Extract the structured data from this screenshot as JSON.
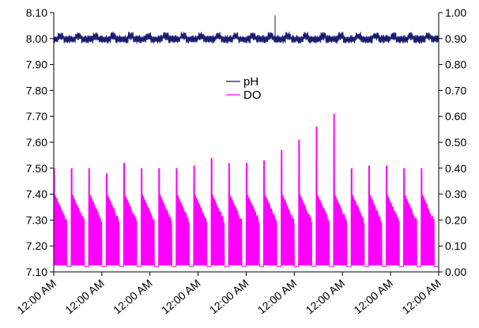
{
  "chart_data": {
    "type": "line",
    "title": "",
    "xlabel": "",
    "ylabel_left": "",
    "ylabel_right": "",
    "x_ticks": [
      "12:00 AM",
      "12:00 AM",
      "12:00 AM",
      "12:00 AM",
      "12:00 AM",
      "12:00 AM",
      "12:00 AM",
      "12:00 AM",
      "12:00 AM"
    ],
    "y_left": {
      "min": 7.1,
      "max": 8.1,
      "ticks": [
        "7.10",
        "7.20",
        "7.30",
        "7.40",
        "7.50",
        "7.60",
        "7.70",
        "7.80",
        "7.90",
        "8.00",
        "8.10"
      ]
    },
    "y_right": {
      "min": 0.0,
      "max": 1.0,
      "ticks": [
        "0.00",
        "0.10",
        "0.20",
        "0.30",
        "0.40",
        "0.50",
        "0.60",
        "0.70",
        "0.80",
        "0.90",
        "1.00"
      ]
    },
    "legend_position": "center",
    "grid": false,
    "days": 22,
    "series": [
      {
        "name": "pH",
        "axis": "left",
        "color": "#1a1a6e",
        "baseline": 7.985,
        "upper": 8.015,
        "spike": {
          "day_fraction": 0.575,
          "value": 8.09
        }
      },
      {
        "name": "DO",
        "axis": "right",
        "color": "#ff00ff",
        "daily_peaks": [
          0.4,
          0.4,
          0.4,
          0.38,
          0.42,
          0.4,
          0.4,
          0.4,
          0.41,
          0.44,
          0.42,
          0.42,
          0.43,
          0.47,
          0.51,
          0.56,
          0.61,
          0.4,
          0.41,
          0.41,
          0.4
        ],
        "plateau_high": 0.3,
        "plateau_low": 0.18,
        "base": 0.02
      }
    ]
  }
}
